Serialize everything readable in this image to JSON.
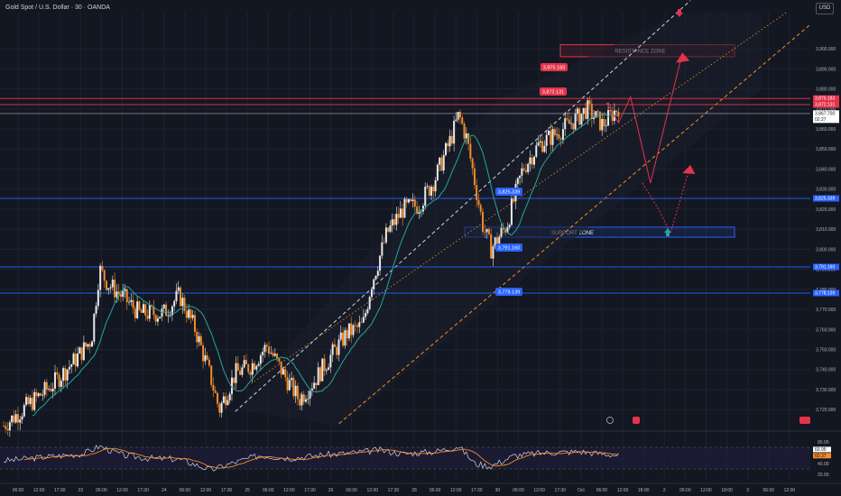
{
  "header": {
    "symbol_title": "Gold Spot / U.S. Dollar · 30 · OANDA",
    "currency": "USD"
  },
  "colors": {
    "background": "#131722",
    "grid": "#1e2230",
    "candle_up": "#e9e9e9",
    "candle_down": "#f28c28",
    "ma_line": "#26a69a",
    "level_line": "#2962ff",
    "resistance": "#e5334b",
    "channel_white": "#d1d4dc",
    "channel_orange": "#f28c28",
    "rsi_line": "#d1d4dc",
    "rsi_ma": "#f28c28",
    "rsi_band": "#1f1d3a",
    "projection": "#e5334b"
  },
  "chart_data": {
    "type": "candlestick",
    "price_axis": {
      "ylim": [
        3712,
        3918
      ],
      "ticks": [
        "3,900.000",
        "3,890.000",
        "3,880.000",
        "3,870.000",
        "3,860.000",
        "3,850.000",
        "3,840.000",
        "3,830.000",
        "3,820.000",
        "3,810.000",
        "3,800.000",
        "3,790.000",
        "3,780.000",
        "3,770.000",
        "3,760.000",
        "3,750.000",
        "3,740.000",
        "3,730.000",
        "3,720.000"
      ]
    },
    "time_axis": {
      "labels": [
        "06:00",
        "12:00",
        "17:30",
        "23",
        "06:00",
        "12:00",
        "17:30",
        "24",
        "06:00",
        "12:00",
        "17:30",
        "25",
        "06:00",
        "12:00",
        "17:30",
        "26",
        "06:00",
        "12:00",
        "17:30",
        "28",
        "06:00",
        "12:00",
        "17:30",
        "30",
        "06:00",
        "12:00",
        "17:30",
        "Oct",
        "06:00",
        "12:00",
        "18:00",
        "2",
        "06:00",
        "12:00",
        "18:00",
        "3",
        "06:00",
        "12:00"
      ]
    },
    "price_path": [
      [
        0,
        3712
      ],
      [
        3,
        3722
      ],
      [
        6,
        3732
      ],
      [
        9,
        3745
      ],
      [
        11,
        3755
      ],
      [
        12,
        3790
      ],
      [
        13,
        3783
      ],
      [
        15,
        3776
      ],
      [
        17,
        3768
      ],
      [
        20,
        3768
      ],
      [
        22,
        3777
      ],
      [
        24,
        3760
      ],
      [
        26,
        3735
      ],
      [
        27,
        3720
      ],
      [
        29,
        3738
      ],
      [
        31,
        3742
      ],
      [
        33,
        3752
      ],
      [
        35,
        3738
      ],
      [
        37,
        3725
      ],
      [
        39,
        3735
      ],
      [
        41,
        3747
      ],
      [
        43,
        3758
      ],
      [
        45,
        3762
      ],
      [
        46,
        3782
      ],
      [
        48,
        3808
      ],
      [
        50,
        3820
      ],
      [
        52,
        3822
      ],
      [
        54,
        3835
      ],
      [
        56,
        3855
      ],
      [
        57,
        3867
      ],
      [
        58,
        3855
      ],
      [
        60,
        3812
      ],
      [
        61,
        3800
      ],
      [
        63,
        3812
      ],
      [
        65,
        3840
      ],
      [
        67,
        3852
      ],
      [
        70,
        3860
      ],
      [
        72,
        3866
      ],
      [
        73,
        3870
      ],
      [
        75,
        3862
      ],
      [
        77,
        3871
      ]
    ],
    "levels": [
      {
        "price": 3875.183,
        "label": "3,875.183",
        "color": "#e5334b"
      },
      {
        "price": 3872.131,
        "label": "3,872.131",
        "color": "#e5334b"
      },
      {
        "price": 3867.7,
        "label": "3,867.700",
        "color": "#d1d4dc"
      },
      {
        "price": 3825.339,
        "label": "3,825.339",
        "color": "#2962ff"
      },
      {
        "price": 3791.16,
        "label": "3,791.160",
        "color": "#2962ff"
      },
      {
        "price": 3778.139,
        "label": "3,778.139",
        "color": "#2962ff"
      }
    ],
    "price_countdown": "02:27",
    "chart_labels": [
      {
        "text": "3,875.183",
        "color": "#e5334b"
      },
      {
        "text": "3,872.131",
        "color": "#e5334b"
      },
      {
        "text": "3,825.339",
        "color": "#2962ff"
      },
      {
        "text": "3,791.160",
        "color": "#2962ff"
      },
      {
        "text": "3,778.139",
        "color": "#2962ff"
      }
    ],
    "zones": [
      {
        "label": "RESISTANCE ZONE",
        "price_low": 3896,
        "price_high": 3902,
        "color": "#e5334b"
      },
      {
        "label": "SUPPORT ZONE",
        "price_low": 3806,
        "price_high": 3811,
        "color": "#2962ff"
      }
    ],
    "rsi": {
      "levels": [
        "80.00",
        "40.00",
        "20.00"
      ],
      "current": "60.95",
      "ma": "60.37",
      "path": [
        [
          0,
          45
        ],
        [
          5,
          52
        ],
        [
          10,
          58
        ],
        [
          12,
          72
        ],
        [
          15,
          55
        ],
        [
          18,
          50
        ],
        [
          22,
          48
        ],
        [
          26,
          28
        ],
        [
          28,
          38
        ],
        [
          32,
          55
        ],
        [
          36,
          50
        ],
        [
          40,
          56
        ],
        [
          44,
          60
        ],
        [
          47,
          65
        ],
        [
          50,
          58
        ],
        [
          54,
          62
        ],
        [
          57,
          72
        ],
        [
          59,
          40
        ],
        [
          61,
          35
        ],
        [
          64,
          55
        ],
        [
          68,
          60
        ],
        [
          72,
          62
        ],
        [
          75,
          58
        ],
        [
          77,
          55
        ]
      ]
    }
  }
}
